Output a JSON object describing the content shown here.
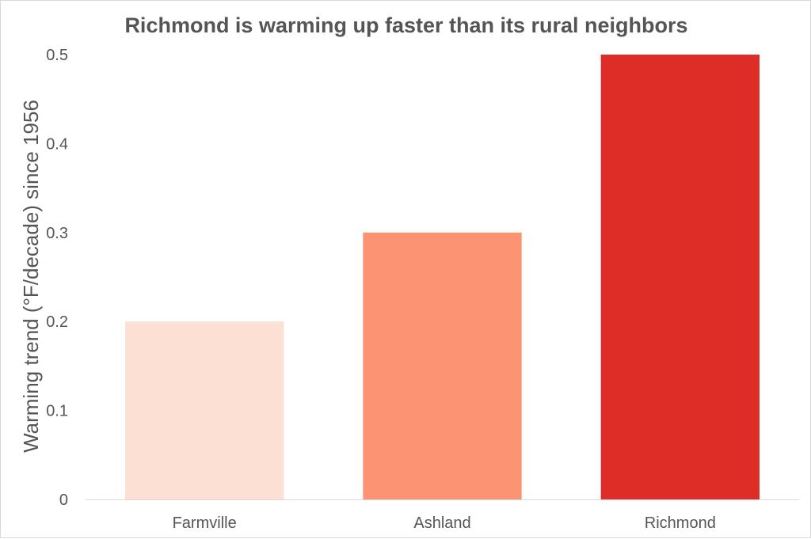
{
  "chart_data": {
    "type": "bar",
    "title": "Richmond is warming up faster than its rural neighbors",
    "xlabel": "",
    "ylabel": "Warming trend (°F/decade) since 1956",
    "categories": [
      "Farmville",
      "Ashland",
      "Richmond"
    ],
    "values": [
      0.2,
      0.3,
      0.5
    ],
    "bar_colors": [
      "#fce0d3",
      "#fc9474",
      "#de2d26"
    ],
    "ylim": [
      0,
      0.5
    ],
    "yticks": [
      "0",
      "0.1",
      "0.2",
      "0.3",
      "0.4",
      "0.5"
    ],
    "grid": false,
    "legend": "none"
  },
  "colors": {
    "text": "#555555",
    "axis_line": "#d9d9d9"
  }
}
